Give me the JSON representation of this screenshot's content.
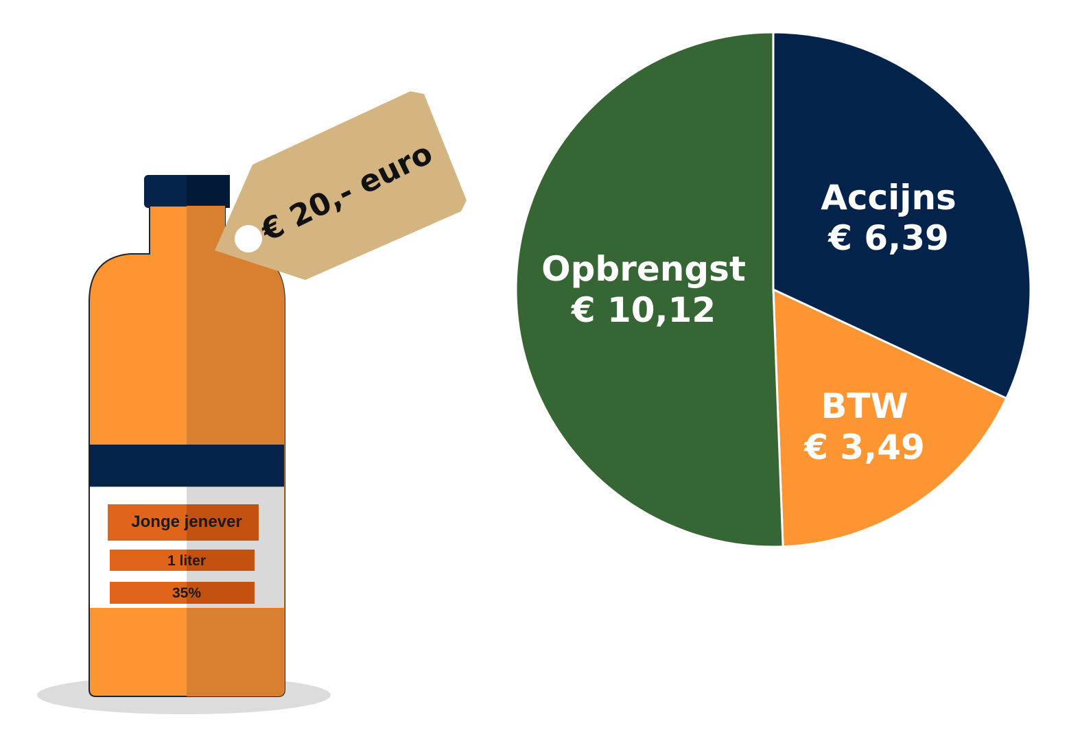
{
  "bottle": {
    "price_tag": "€ 20,- euro",
    "label_name": "Jonge jenever",
    "label_volume": "1 liter",
    "label_alcohol": "35%",
    "colors": {
      "body": "#fd9533",
      "body_shade": "#d98030",
      "band": "#03234a",
      "tag": "#d4b582",
      "label_box": "#e0651a"
    }
  },
  "chart_data": {
    "type": "pie",
    "start": "top",
    "direction": "clockwise",
    "total": 20,
    "slices": [
      {
        "label": "Accijns",
        "value_text": "€ 6,39",
        "value": 6.39,
        "color": "#03234a"
      },
      {
        "label": "BTW",
        "value_text": "€ 3,49",
        "value": 3.49,
        "color": "#fd9533"
      },
      {
        "label": "Opbrengst",
        "value_text": "€ 10,12",
        "value": 10.12,
        "color": "#366634"
      }
    ]
  }
}
